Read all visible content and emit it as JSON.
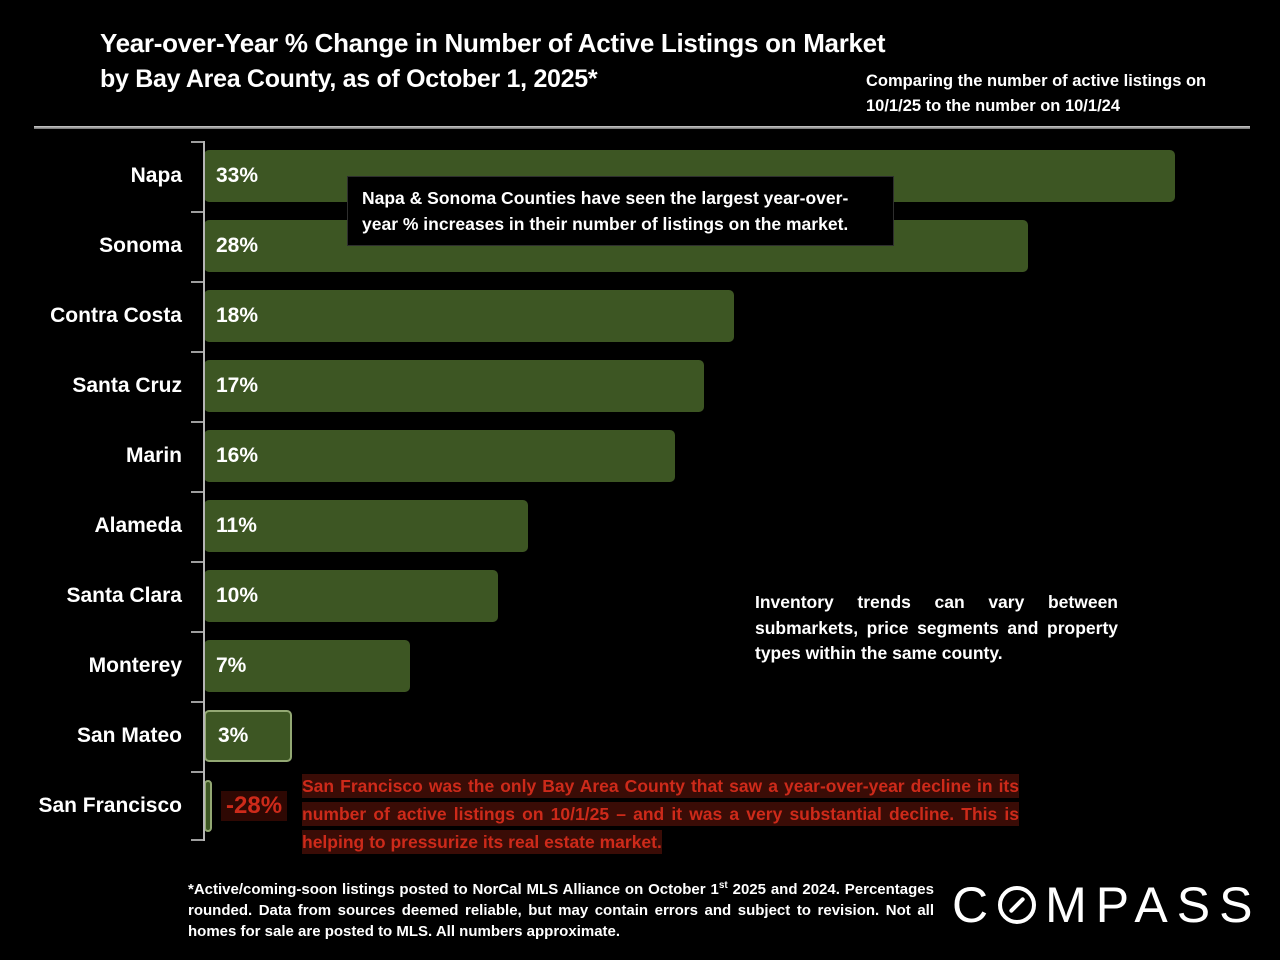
{
  "header": {
    "title": "Year-over-Year % Change in Number of Active Listings on Market",
    "subtitle": "by Bay Area County, as of October 1, 2025*",
    "comparison_note": "Comparing the number of active listings on 10/1/25 to the number on 10/1/24"
  },
  "chart_data": {
    "type": "bar",
    "orientation": "horizontal",
    "title": "Year-over-Year % Change in Number of Active Listings on Market by Bay Area County, as of October 1, 2025",
    "categories": [
      "Napa",
      "Sonoma",
      "Contra Costa",
      "Santa Cruz",
      "Marin",
      "Alameda",
      "Santa Clara",
      "Monterey",
      "San Mateo",
      "San Francisco"
    ],
    "values": [
      33,
      28,
      18,
      17,
      16,
      11,
      10,
      7,
      3,
      -28
    ],
    "value_labels": [
      "33%",
      "28%",
      "18%",
      "17%",
      "16%",
      "11%",
      "10%",
      "7%",
      "3%",
      "-28%"
    ],
    "xlim": [
      0,
      35
    ],
    "grid": false,
    "legend": false,
    "bar_color": "#3d5623",
    "outline_color": "#93a873",
    "outlined_bars": [
      "San Mateo",
      "San Francisco"
    ],
    "negative_label_color": "#cd2a1a",
    "background_color": "#000000"
  },
  "annotations": {
    "callout_lines": [
      "Napa & Sonoma Counties have seen the largest year-over-",
      "year % increases in their number of listings on the market."
    ],
    "inventory_note": "Inventory trends can vary between submarkets, price segments and property types within the same county.",
    "sf_note": "San Francisco was the only Bay Area County that saw a year-over-year decline in its number of active listings on 10/1/25 – and it was a very substantial decline. This is helping to pressurize its real estate market."
  },
  "footnote": {
    "pre": "*Active/coming-soon listings posted to NorCal MLS Alliance on October 1",
    "sup": "st",
    "post": " 2025 and 2024. Percentages rounded. Data from sources deemed reliable, but may contain errors and subject to revision. Not all homes for sale are posted to MLS. All numbers approximate."
  },
  "logo": {
    "brand": "COMPASS",
    "left": "C",
    "right": "MPASS"
  }
}
